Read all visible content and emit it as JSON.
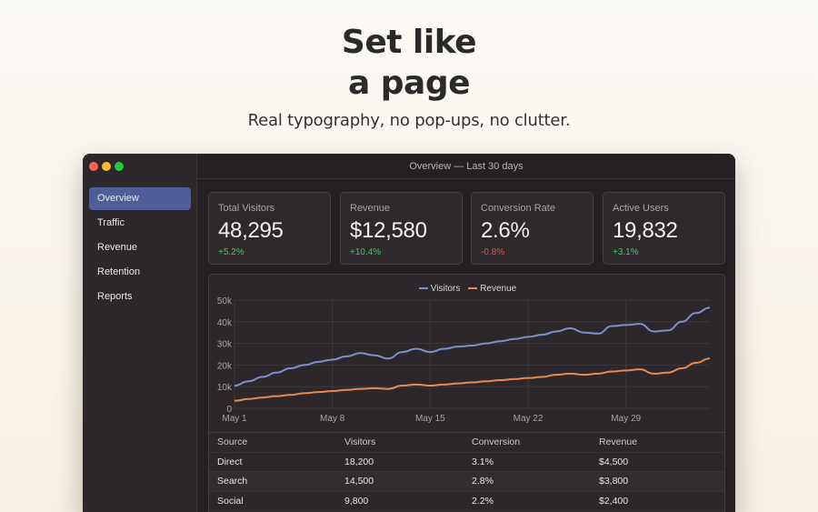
{
  "hero": {
    "title_line1": "Set like",
    "title_line2": "a page",
    "subtitle": "Real typography, no pop-ups, no clutter."
  },
  "window": {
    "title": "Overview — Last 30 days",
    "traffic_lights": {
      "close": "#ff5f57",
      "minimize": "#febc2e",
      "zoom": "#28c840"
    }
  },
  "sidebar": {
    "items": [
      {
        "label": "Overview",
        "active": true
      },
      {
        "label": "Traffic",
        "active": false
      },
      {
        "label": "Revenue",
        "active": false
      },
      {
        "label": "Retention",
        "active": false
      },
      {
        "label": "Reports",
        "active": false
      }
    ]
  },
  "kpis": [
    {
      "label": "Total Visitors",
      "value": "48,295",
      "delta": "+5.2%",
      "trend": "up"
    },
    {
      "label": "Revenue",
      "value": "$12,580",
      "delta": "+10.4%",
      "trend": "up"
    },
    {
      "label": "Conversion Rate",
      "value": "2.6%",
      "delta": "-0.8%",
      "trend": "down"
    },
    {
      "label": "Active Users",
      "value": "19,832",
      "delta": "+3.1%",
      "trend": "up"
    }
  ],
  "colors": {
    "accent": "#4d5e98",
    "positive": "#4cc26b",
    "negative": "#e0564e",
    "visitors": "#7b8fd0",
    "revenue": "#e68a4d"
  },
  "chart_data": {
    "type": "line",
    "x": [
      1,
      2,
      3,
      4,
      5,
      6,
      7,
      8,
      9,
      10,
      11,
      12,
      13,
      14,
      15,
      16,
      17,
      18,
      19,
      20,
      21,
      22,
      23,
      24,
      25,
      26,
      27,
      28,
      29,
      30,
      31,
      32,
      33,
      34,
      35
    ],
    "x_tick_labels": [
      "May 1",
      "May 8",
      "May 15",
      "May 22",
      "May 29"
    ],
    "x_tick_positions": [
      1,
      8,
      15,
      22,
      29
    ],
    "y_tick_labels": [
      "0",
      "10k",
      "20k",
      "30k",
      "40k",
      "50k"
    ],
    "ylim": [
      0,
      50000
    ],
    "grid": true,
    "legend_position": "top-center",
    "series": [
      {
        "name": "Visitors",
        "color": "#7b8fd0",
        "values": [
          10500,
          12500,
          14500,
          16500,
          18500,
          20000,
          21500,
          22500,
          24000,
          25500,
          24500,
          23000,
          26000,
          27500,
          26000,
          27500,
          28500,
          29000,
          30000,
          31000,
          32000,
          33000,
          34000,
          35500,
          37000,
          35000,
          34500,
          38000,
          38500,
          39000,
          35500,
          36000,
          40000,
          44000,
          46500
        ]
      },
      {
        "name": "Revenue",
        "color": "#e68a4d",
        "values": [
          3500,
          4300,
          5000,
          5600,
          6200,
          7000,
          7500,
          8000,
          8500,
          9000,
          9300,
          9000,
          10500,
          11000,
          10500,
          11000,
          11500,
          12000,
          12500,
          13000,
          13500,
          14000,
          14500,
          15500,
          16000,
          15500,
          16000,
          17000,
          17500,
          18000,
          16000,
          16500,
          18500,
          21000,
          23000
        ]
      }
    ]
  },
  "table": {
    "headers": [
      "Source",
      "Visitors",
      "Conversion",
      "Revenue"
    ],
    "rows": [
      [
        "Direct",
        "18,200",
        "3.1%",
        "$4,500"
      ],
      [
        "Search",
        "14,500",
        "2.8%",
        "$3,800"
      ],
      [
        "Social",
        "9,800",
        "2.2%",
        "$2,400"
      ]
    ]
  }
}
